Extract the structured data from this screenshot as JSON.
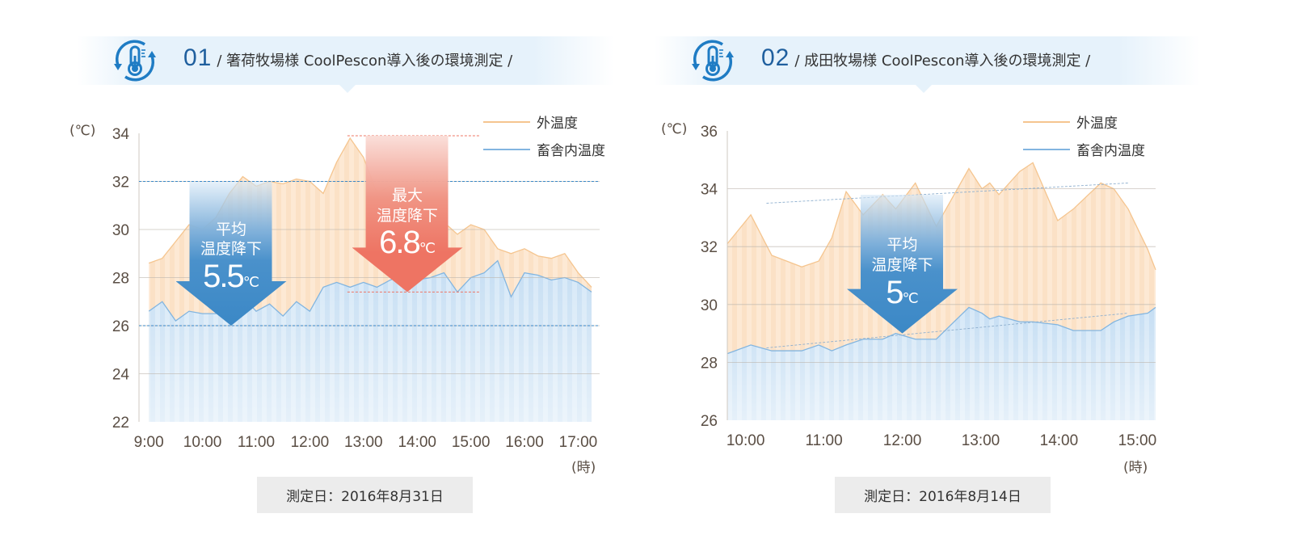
{
  "panels": [
    {
      "number": "01",
      "title": "/ 箸荷牧場様 CoolPescon導入後の環境測定 /",
      "icon": "thermometer-cycle-icon",
      "date_label": "測定日：2016年8月31日",
      "y_unit": "(℃)",
      "x_unit": "(時)"
    },
    {
      "number": "02",
      "title": "/ 成田牧場様 CoolPescon導入後の環境測定 /",
      "icon": "thermometer-cycle-icon",
      "date_label": "測定日：2016年8月14日",
      "y_unit": "(℃)",
      "x_unit": "(時)"
    }
  ],
  "colors": {
    "outside": "#f5c58f",
    "inside": "#82b5e0",
    "accent_blue": "#3b88c6",
    "accent_red": "#ee7463",
    "title_blue": "#1f5f9e"
  },
  "chart_data": [
    {
      "type": "area",
      "ylim": [
        22,
        34
      ],
      "yticks": [
        22,
        24,
        26,
        28,
        30,
        32,
        34
      ],
      "xlim": [
        "8:49",
        "17:24"
      ],
      "xticks": [
        "9:00",
        "10:00",
        "11:00",
        "12:00",
        "13:00",
        "14:00",
        "15:00",
        "16:00",
        "17:00"
      ],
      "grid": true,
      "legend": "top-right",
      "x": [
        "9:00",
        "9:15",
        "9:30",
        "9:45",
        "10:00",
        "10:15",
        "10:30",
        "10:45",
        "11:00",
        "11:15",
        "11:30",
        "11:45",
        "12:00",
        "12:15",
        "12:30",
        "12:45",
        "13:00",
        "13:15",
        "13:30",
        "13:45",
        "14:00",
        "14:15",
        "14:30",
        "14:45",
        "15:00",
        "15:15",
        "15:30",
        "15:45",
        "16:00",
        "16:15",
        "16:30",
        "16:45",
        "17:00",
        "17:15"
      ],
      "series": [
        {
          "name": "外温度",
          "values": [
            28.6,
            28.8,
            29.5,
            30.2,
            30.0,
            30.5,
            31.5,
            32.2,
            31.8,
            32.0,
            31.9,
            32.1,
            32.0,
            31.5,
            32.8,
            33.8,
            33.0,
            31.5,
            31.8,
            31.2,
            31.0,
            30.5,
            30.3,
            29.8,
            30.2,
            30.0,
            29.2,
            29.0,
            29.2,
            28.9,
            28.8,
            29.0,
            28.2,
            27.6
          ]
        },
        {
          "name": "畜舎内温度",
          "values": [
            26.6,
            27.0,
            26.2,
            26.6,
            26.5,
            26.5,
            27.0,
            27.2,
            26.6,
            26.9,
            26.4,
            27.0,
            26.6,
            27.6,
            27.8,
            27.6,
            27.8,
            27.6,
            27.9,
            28.1,
            27.9,
            28.0,
            28.2,
            27.4,
            28.0,
            28.2,
            28.7,
            27.2,
            28.2,
            28.1,
            27.9,
            28.0,
            27.8,
            27.4
          ]
        }
      ],
      "reference_lines": [
        {
          "value": 32,
          "color": "#3b88c6"
        },
        {
          "value": 26,
          "color": "#3b88c6"
        },
        {
          "value": 33.9,
          "from": "12:42",
          "to": "15:10",
          "color": "#ee7463"
        },
        {
          "value": 27.4,
          "from": "12:42",
          "to": "15:10",
          "color": "#ee7463"
        }
      ],
      "annotations": [
        {
          "kind": "blue",
          "time": "10:32",
          "from": 32,
          "to": 26,
          "label1": "平均",
          "label2": "温度降下",
          "value": "5.5",
          "unit": "℃"
        },
        {
          "kind": "red",
          "time": "13:49",
          "from": 33.9,
          "to": 27.4,
          "label1": "最大",
          "label2": "温度降下",
          "value": "6.8",
          "unit": "℃"
        }
      ]
    },
    {
      "type": "area",
      "ylim": [
        26,
        36
      ],
      "yticks": [
        26,
        28,
        30,
        32,
        34,
        36
      ],
      "xlim": [
        "9:46",
        "15:14"
      ],
      "xticks": [
        "10:00",
        "11:00",
        "12:00",
        "13:00",
        "14:00",
        "15:00"
      ],
      "grid": true,
      "legend": "top-right",
      "x": [
        "9:46",
        "10:04",
        "10:20",
        "10:43",
        "10:56",
        "11:06",
        "11:17",
        "11:30",
        "11:45",
        "11:55",
        "12:10",
        "12:26",
        "12:51",
        "13:01",
        "13:07",
        "13:14",
        "13:30",
        "13:40",
        "13:59",
        "14:11",
        "14:32",
        "14:42",
        "14:53",
        "15:08",
        "15:14"
      ],
      "series": [
        {
          "name": "外温度",
          "values": [
            32.1,
            33.1,
            31.7,
            31.3,
            31.5,
            32.3,
            33.9,
            33.1,
            33.8,
            33.3,
            34.2,
            32.7,
            34.7,
            34.0,
            34.2,
            33.8,
            34.6,
            34.9,
            32.9,
            33.3,
            34.2,
            34.0,
            33.3,
            31.9,
            31.2
          ]
        },
        {
          "name": "畜舎内温度",
          "values": [
            28.3,
            28.6,
            28.4,
            28.4,
            28.6,
            28.4,
            28.6,
            28.8,
            28.8,
            29.0,
            28.8,
            28.8,
            29.9,
            29.7,
            29.5,
            29.6,
            29.4,
            29.4,
            29.3,
            29.1,
            29.1,
            29.4,
            29.6,
            29.7,
            29.9
          ]
        }
      ],
      "trend_lines": [
        {
          "series": "外温度",
          "from": [
            "10:16",
            33.5
          ],
          "to": [
            "14:53",
            34.2
          ]
        },
        {
          "series": "畜舎内温度",
          "from": [
            "10:16",
            28.5
          ],
          "to": [
            "14:53",
            29.7
          ]
        }
      ],
      "annotations": [
        {
          "kind": "blue",
          "time": "12:00",
          "from": 33.8,
          "to": 29.0,
          "label1": "平均",
          "label2": "温度降下",
          "value": "5",
          "unit": "℃"
        }
      ]
    }
  ]
}
